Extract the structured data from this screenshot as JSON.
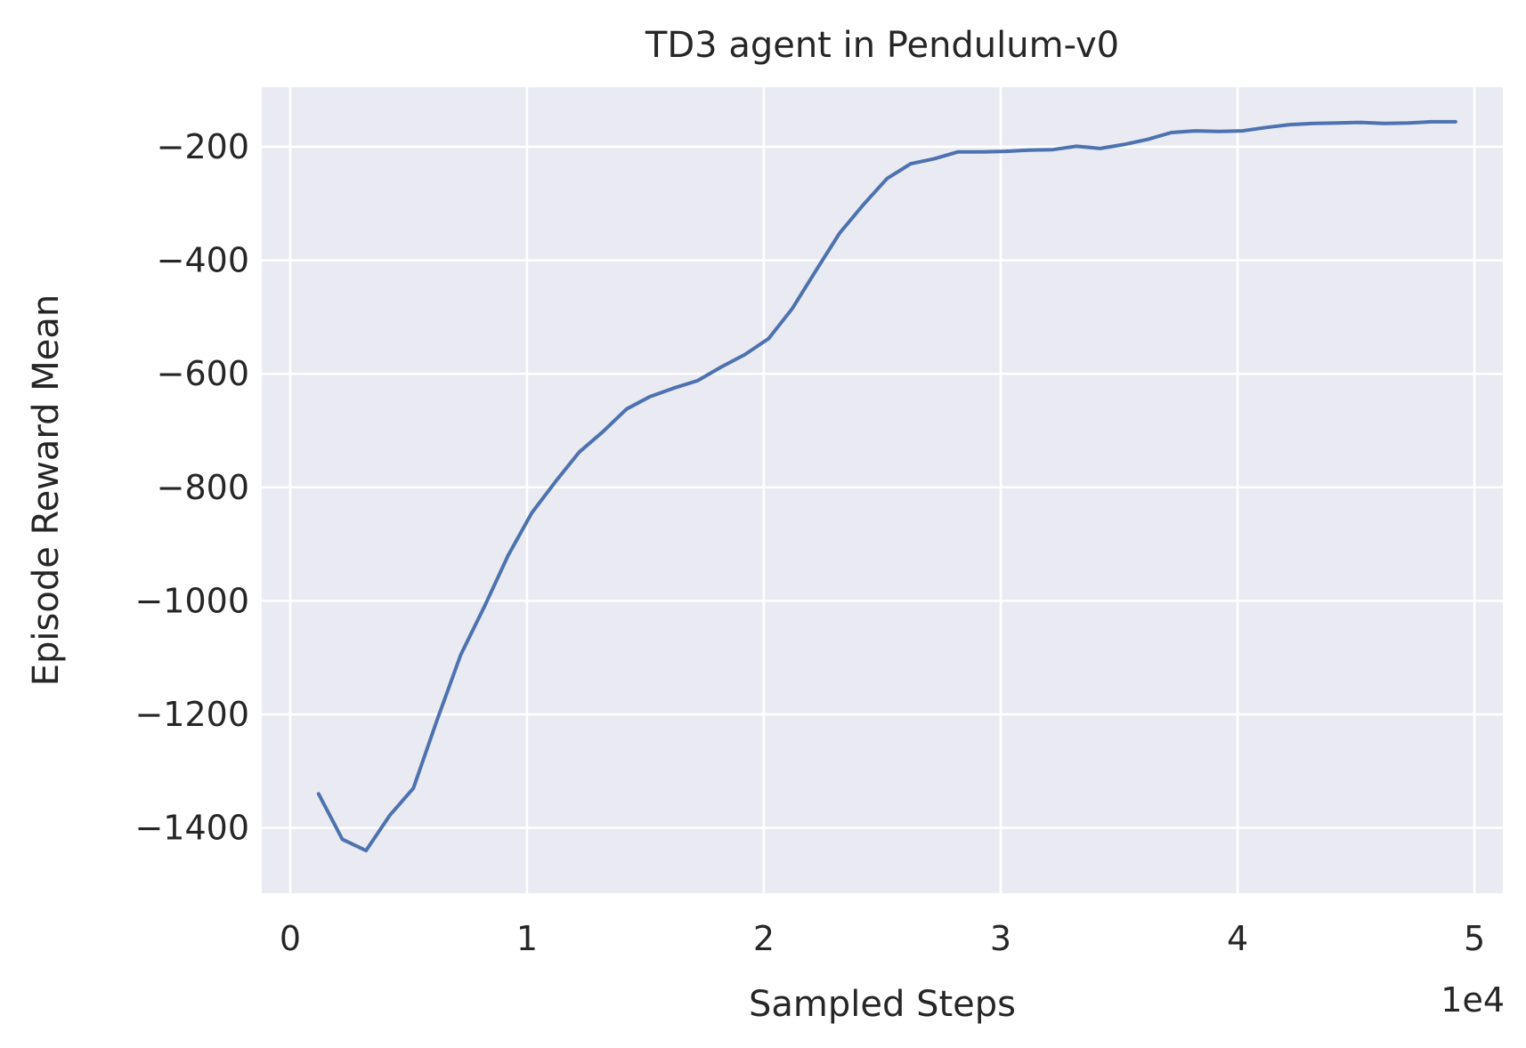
{
  "chart_data": {
    "type": "line",
    "title": "TD3 agent in Pendulum-v0",
    "xlabel": "Sampled Steps",
    "ylabel": "Episode Reward Mean",
    "x_multiplier_label": "1e4",
    "xlim": [
      -0.12,
      5.12
    ],
    "ylim": [
      -1515,
      -95
    ],
    "x_ticks": [
      0,
      1,
      2,
      3,
      4,
      5
    ],
    "x_tick_labels": [
      "0",
      "1",
      "2",
      "3",
      "4",
      "5"
    ],
    "y_ticks": [
      -200,
      -400,
      -600,
      -800,
      -1000,
      -1200,
      -1400
    ],
    "y_tick_labels": [
      "−200",
      "−400",
      "−600",
      "−800",
      "−1000",
      "−1200",
      "−1400"
    ],
    "grid": true,
    "background_color": "#eaeaf2",
    "grid_color": "#ffffff",
    "series": [
      {
        "color": "#4c72b0",
        "x": [
          0.12,
          0.22,
          0.32,
          0.42,
          0.52,
          0.62,
          0.72,
          0.82,
          0.92,
          1.02,
          1.12,
          1.22,
          1.32,
          1.42,
          1.52,
          1.62,
          1.72,
          1.82,
          1.92,
          2.02,
          2.12,
          2.22,
          2.32,
          2.42,
          2.52,
          2.62,
          2.72,
          2.82,
          2.92,
          3.02,
          3.12,
          3.22,
          3.32,
          3.42,
          3.52,
          3.62,
          3.72,
          3.82,
          3.92,
          4.02,
          4.12,
          4.22,
          4.32,
          4.42,
          4.52,
          4.62,
          4.72,
          4.82,
          4.92
        ],
        "y": [
          -1340,
          -1420,
          -1440,
          -1378,
          -1330,
          -1210,
          -1095,
          -1010,
          -920,
          -845,
          -790,
          -738,
          -702,
          -662,
          -640,
          -625,
          -612,
          -588,
          -566,
          -538,
          -485,
          -418,
          -352,
          -302,
          -256,
          -230,
          -221,
          -209,
          -209,
          -208,
          -206,
          -205,
          -199,
          -203,
          -196,
          -187,
          -175,
          -172,
          -173,
          -172,
          -166,
          -161,
          -159,
          -158,
          -157,
          -159,
          -158,
          -156,
          -156
        ]
      }
    ]
  }
}
